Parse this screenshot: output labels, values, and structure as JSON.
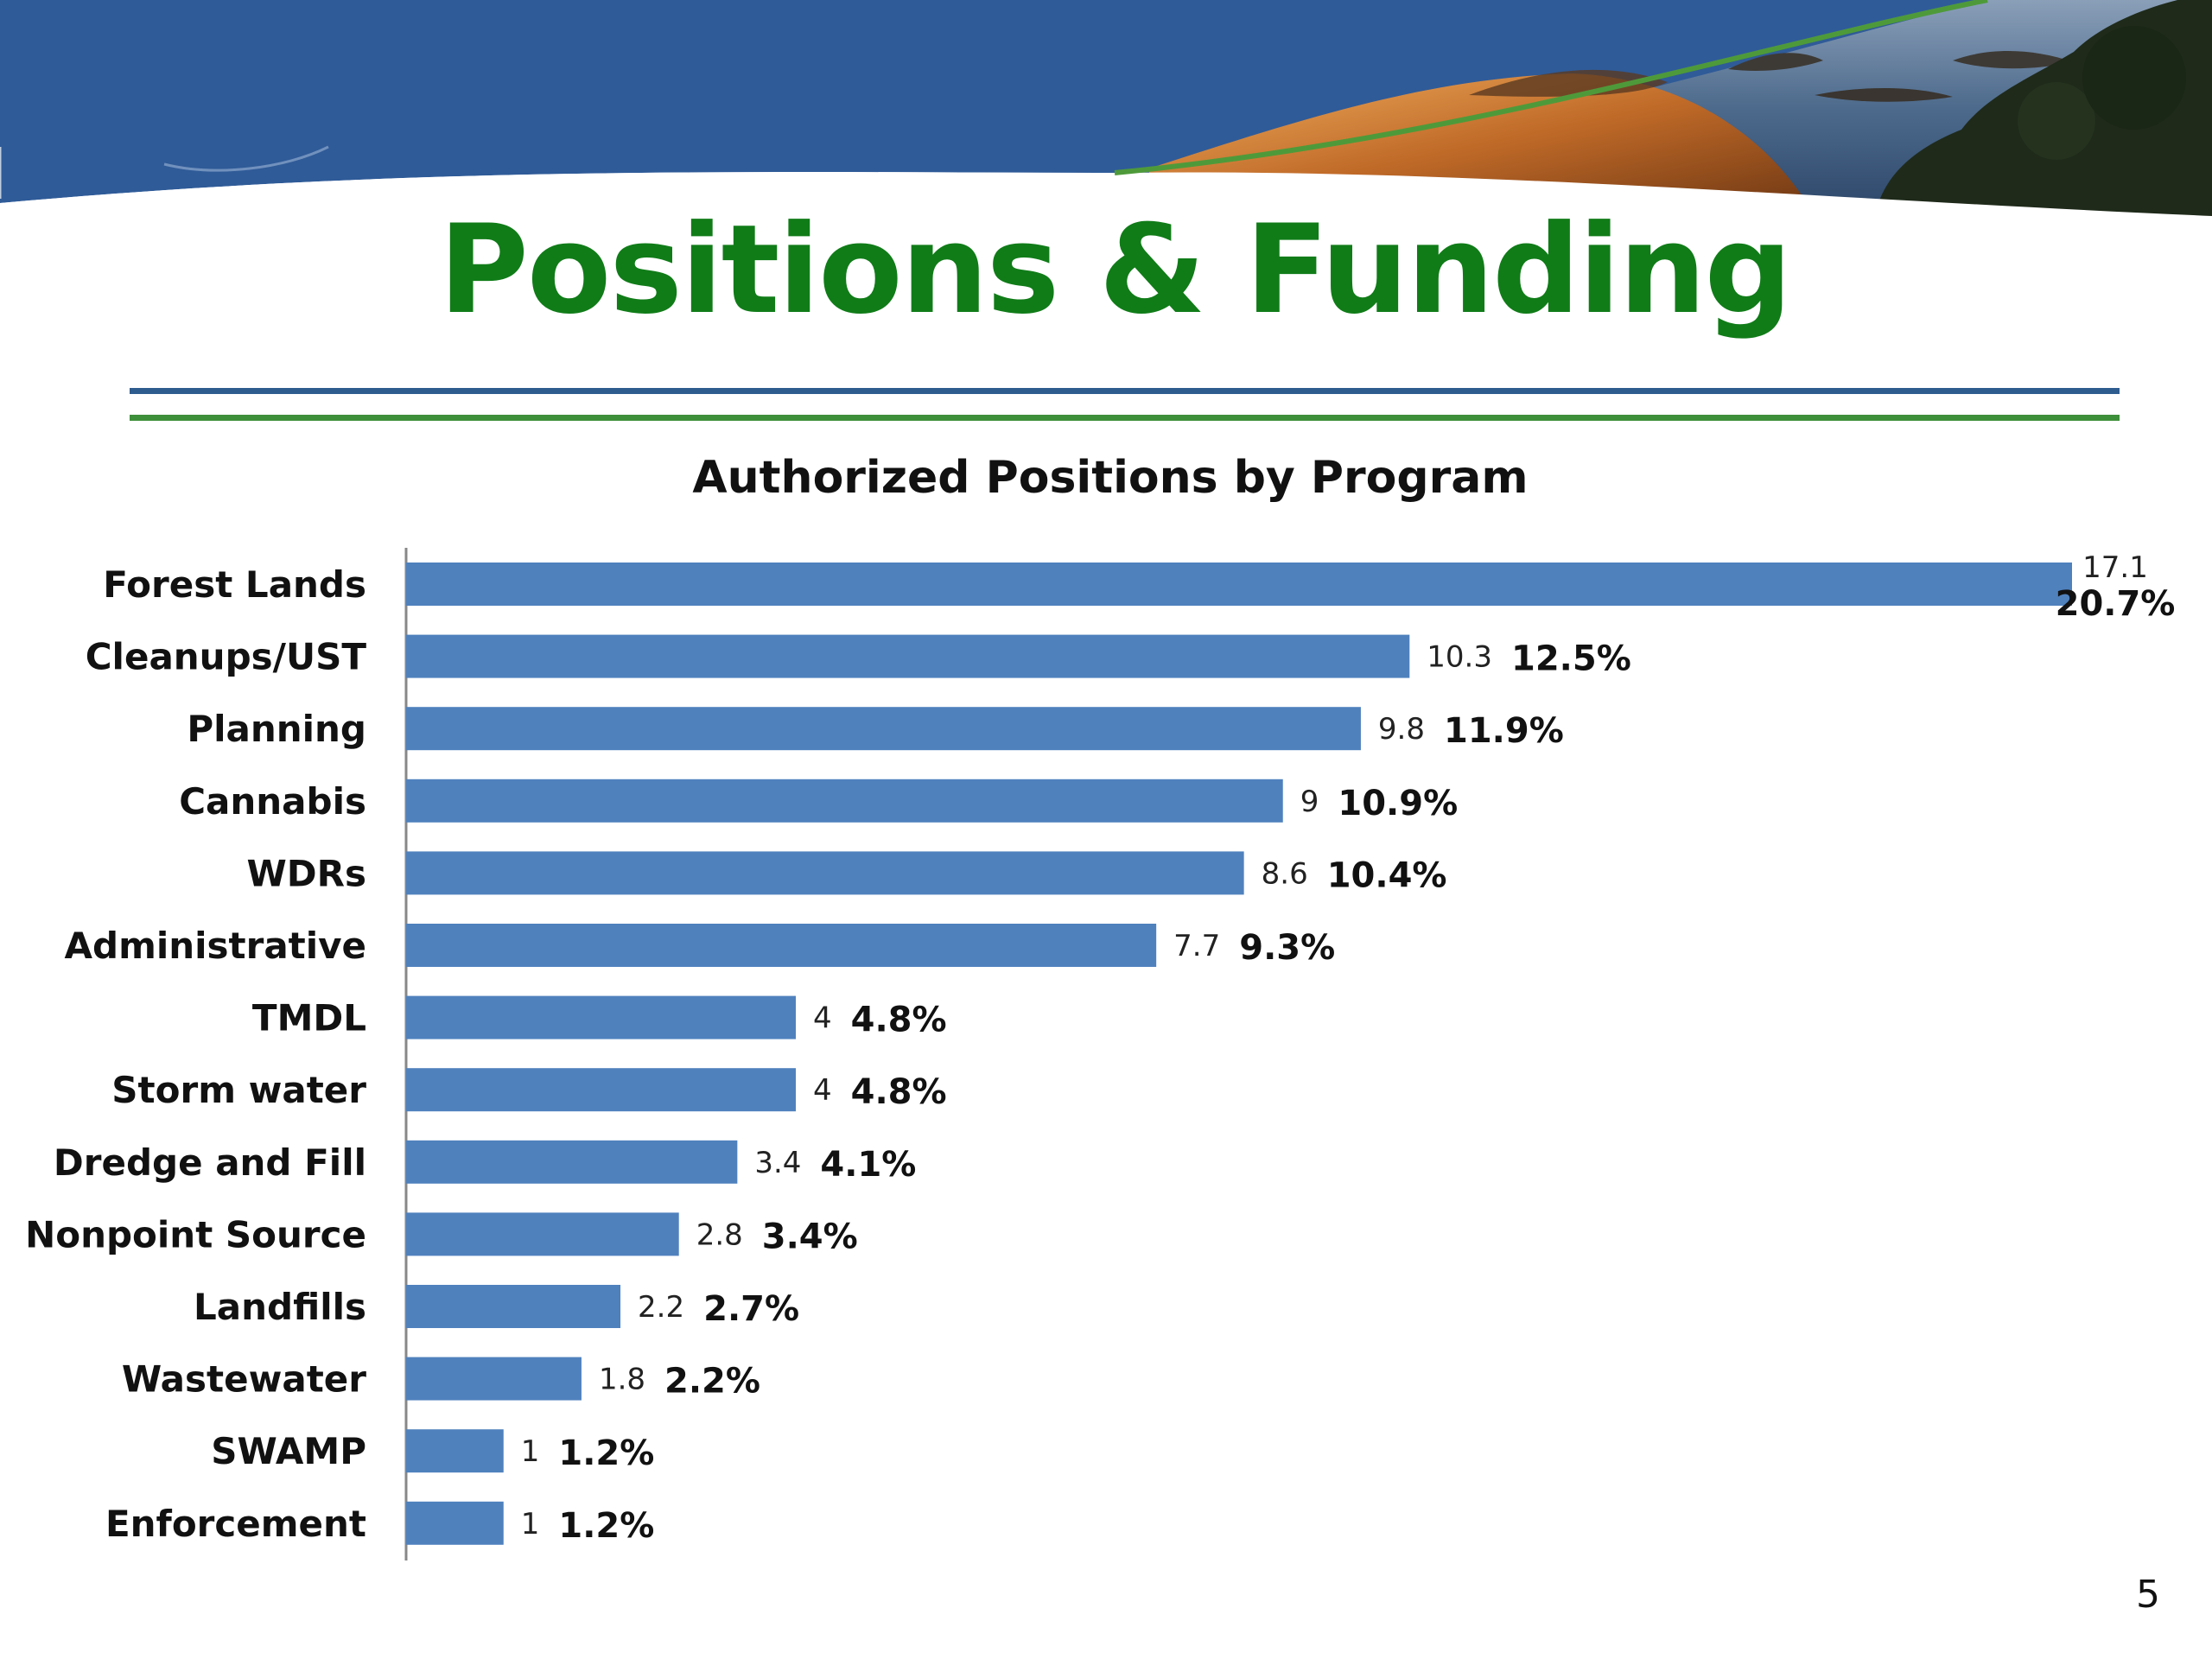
{
  "slide": {
    "title": "Positions & Funding",
    "page_number": "5"
  },
  "colors": {
    "title": "#107c18",
    "bar": "#4f81bd",
    "banner_blue": "#2f5b98",
    "rule_blue": "#2f5c8f",
    "rule_green": "#3e8f3a"
  },
  "chart_data": {
    "type": "bar",
    "orientation": "horizontal",
    "title": "Authorized Positions by Program",
    "categories": [
      "Forest Lands",
      "Cleanups/UST",
      "Planning",
      "Cannabis",
      "WDRs",
      "Administrative",
      "TMDL",
      "Storm water",
      "Dredge and Fill",
      "Nonpoint Source",
      "Landfills",
      "Wastewater",
      "SWAMP",
      "Enforcement"
    ],
    "values": [
      17.1,
      10.3,
      9.8,
      9,
      8.6,
      7.7,
      4,
      4,
      3.4,
      2.8,
      2.2,
      1.8,
      1,
      1
    ],
    "value_labels": [
      "17.1",
      "10.3",
      "9.8",
      "9",
      "8.6",
      "7.7",
      "4",
      "4",
      "3.4",
      "2.8",
      "2.2",
      "1.8",
      "1",
      "1"
    ],
    "percent_labels": [
      "20.7%",
      "12.5%",
      "11.9%",
      "10.9%",
      "10.4%",
      "9.3%",
      "4.8%",
      "4.8%",
      "4.1%",
      "3.4%",
      "2.7%",
      "2.2%",
      "1.2%",
      "1.2%"
    ],
    "xlim": [
      0,
      17.1
    ],
    "grid": false,
    "legend": "none",
    "xlabel": "",
    "ylabel": ""
  }
}
